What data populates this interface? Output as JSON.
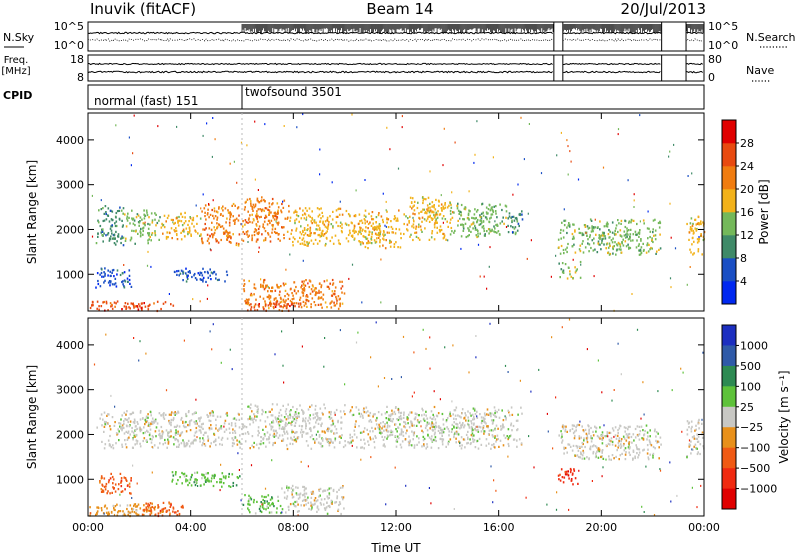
{
  "header": {
    "station": "Inuvik (fitACF)",
    "beam": "Beam 14",
    "date": "20/Jul/2013"
  },
  "status_panels": {
    "nsky": {
      "label": "N.Sky",
      "ticks": [
        "10^5",
        "10^0"
      ]
    },
    "nsearch": {
      "label": "N.Search",
      "ticks": [
        "10^5",
        "10^0"
      ]
    },
    "freq": {
      "label_line1": "Freq.",
      "label_line2": "[MHz]",
      "ticks": [
        "18",
        "8"
      ]
    },
    "nave": {
      "label": "Nave",
      "ticks": [
        "80",
        "0"
      ]
    },
    "cpid": {
      "label": "CPID",
      "segments": [
        {
          "name": "normal (fast) 151",
          "start_h": 0,
          "end_h": 6
        },
        {
          "name": "twofsound 3501",
          "start_h": 6,
          "end_h": 24
        }
      ]
    }
  },
  "chart_data": [
    {
      "type": "heatmap",
      "name": "Power",
      "ylabel": "Slant Range [km]",
      "xlabel": "",
      "xlim": [
        0,
        24
      ],
      "ylim": [
        180,
        4600
      ],
      "y_ticks": [
        1000,
        2000,
        3000,
        4000
      ],
      "x_ticks": [
        0,
        4,
        8,
        12,
        16,
        20,
        24
      ],
      "x_tick_labels": [
        "00:00",
        "04:00",
        "08:00",
        "12:00",
        "16:00",
        "20:00",
        "00:00"
      ],
      "colorbar": {
        "label": "Power [dB]",
        "ticks": [
          "4",
          "8",
          "12",
          "16",
          "20",
          "24",
          "28"
        ],
        "colors": [
          "#0028f0",
          "#1a4fc4",
          "#3f8a68",
          "#74b85a",
          "#f2b21a",
          "#f07c10",
          "#e84a10",
          "#e00000"
        ]
      },
      "regions": [
        {
          "t0": 0.3,
          "t1": 1.4,
          "r0": 1650,
          "r1": 2550,
          "level": 2
        },
        {
          "t0": 1.4,
          "t1": 2.8,
          "r0": 1700,
          "r1": 2450,
          "level": 3
        },
        {
          "t0": 2.8,
          "t1": 4.4,
          "r0": 1800,
          "r1": 2400,
          "level": 4
        },
        {
          "t0": 4.4,
          "t1": 6.0,
          "r0": 1650,
          "r1": 2600,
          "level": 5
        },
        {
          "t0": 6.0,
          "t1": 7.8,
          "r0": 1750,
          "r1": 2750,
          "level": 5
        },
        {
          "t0": 7.8,
          "t1": 10.0,
          "r0": 1650,
          "r1": 2500,
          "level": 4
        },
        {
          "t0": 10.0,
          "t1": 12.2,
          "r0": 1600,
          "r1": 2450,
          "level": 4
        },
        {
          "t0": 12.2,
          "t1": 14.2,
          "r0": 1750,
          "r1": 2750,
          "level": 4
        },
        {
          "t0": 14.2,
          "t1": 16.3,
          "r0": 1850,
          "r1": 2600,
          "level": 3
        },
        {
          "t0": 16.3,
          "t1": 16.9,
          "r0": 1900,
          "r1": 2450,
          "level": 2
        },
        {
          "t0": 18.3,
          "t1": 22.3,
          "r0": 1450,
          "r1": 2250,
          "level": 3
        },
        {
          "t0": 23.3,
          "t1": 24.0,
          "r0": 1450,
          "r1": 2350,
          "level": 4
        },
        {
          "t0": 0.2,
          "t1": 1.7,
          "r0": 700,
          "r1": 1200,
          "level": 1
        },
        {
          "t0": 3.2,
          "t1": 5.4,
          "r0": 850,
          "r1": 1150,
          "level": 1
        },
        {
          "t0": 6.0,
          "t1": 10.0,
          "r0": 250,
          "r1": 900,
          "level": 5
        },
        {
          "t0": 0.0,
          "t1": 3.5,
          "r0": 200,
          "r1": 420,
          "level": 6
        },
        {
          "t0": 6.0,
          "t1": 8.5,
          "r0": 200,
          "r1": 400,
          "level": 6
        },
        {
          "t0": 18.3,
          "t1": 19.2,
          "r0": 900,
          "r1": 1300,
          "level": 3
        }
      ]
    },
    {
      "type": "heatmap",
      "name": "Velocity",
      "ylabel": "Slant Range [km]",
      "xlabel": "Time UT",
      "xlim": [
        0,
        24
      ],
      "ylim": [
        180,
        4600
      ],
      "y_ticks": [
        1000,
        2000,
        3000,
        4000
      ],
      "x_ticks": [
        0,
        4,
        8,
        12,
        16,
        20,
        24
      ],
      "x_tick_labels": [
        "00:00",
        "04:00",
        "08:00",
        "12:00",
        "16:00",
        "20:00",
        "00:00"
      ],
      "colorbar": {
        "label": "Velocity [m s⁻¹]",
        "ticks": [
          "1000",
          "500",
          "100",
          "25",
          "−25",
          "−100",
          "−500",
          "−1000"
        ],
        "colors": [
          "#1c2fc0",
          "#2f5aa8",
          "#2d8a52",
          "#5ec23a",
          "#c8c8c4",
          "#e8901a",
          "#f05a14",
          "#f02a10",
          "#e00000"
        ]
      },
      "regions": [
        {
          "t0": 0.3,
          "t1": 6.0,
          "r0": 1700,
          "r1": 2550,
          "level": 4
        },
        {
          "t0": 6.0,
          "t1": 10.0,
          "r0": 1700,
          "r1": 2700,
          "level": 4
        },
        {
          "t0": 10.0,
          "t1": 16.9,
          "r0": 1700,
          "r1": 2650,
          "level": 4
        },
        {
          "t0": 18.3,
          "t1": 22.3,
          "r0": 1450,
          "r1": 2250,
          "level": 4
        },
        {
          "t0": 23.3,
          "t1": 24.0,
          "r0": 1450,
          "r1": 2350,
          "level": 4
        },
        {
          "t0": 3.2,
          "t1": 5.9,
          "r0": 850,
          "r1": 1200,
          "level": 3
        },
        {
          "t0": 6.0,
          "t1": 7.5,
          "r0": 250,
          "r1": 700,
          "level": 3
        },
        {
          "t0": 7.5,
          "t1": 10.0,
          "r0": 250,
          "r1": 900,
          "level": 4
        },
        {
          "t0": 0.0,
          "t1": 2.8,
          "r0": 200,
          "r1": 480,
          "level": 5
        },
        {
          "t0": 2.0,
          "t1": 3.8,
          "r0": 200,
          "r1": 520,
          "level": 6
        },
        {
          "t0": 18.3,
          "t1": 19.1,
          "r0": 900,
          "r1": 1300,
          "level": 7
        },
        {
          "t0": 0.4,
          "t1": 1.7,
          "r0": 700,
          "r1": 1150,
          "level": 6
        }
      ]
    }
  ]
}
